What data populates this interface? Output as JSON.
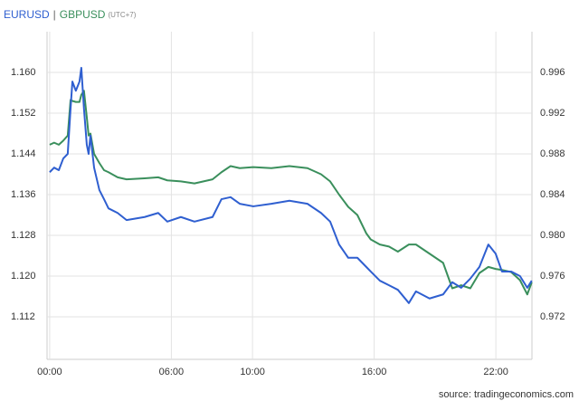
{
  "chart_data": {
    "type": "line",
    "legend_separator": "|",
    "subtitle": "(UTC+7)",
    "source": "source: tradingeconomics.com",
    "x": [
      0,
      0.22,
      0.45,
      0.67,
      0.89,
      1.03,
      1.12,
      1.29,
      1.47,
      1.56,
      1.69,
      1.83,
      1.92,
      2.01,
      2.19,
      2.45,
      2.68,
      2.9,
      3.35,
      3.79,
      4.68,
      5.35,
      5.8,
      6.47,
      7.14,
      8.03,
      8.47,
      8.92,
      9.37,
      10.04,
      10.93,
      11.82,
      12.71,
      13.38,
      13.83,
      14.27,
      14.72,
      15.17,
      15.61,
      15.83,
      16.28,
      16.73,
      17.17,
      17.71,
      18.06,
      18.73,
      19.4,
      19.85,
      20.29,
      20.74,
      21.19,
      21.63,
      21.99,
      22.3,
      22.75,
      23.19,
      23.55,
      23.77
    ],
    "series": [
      {
        "name": "EURUSD",
        "color": "#2f5fd0",
        "axis": "y",
        "values": [
          1.1404,
          1.1413,
          1.1408,
          1.1431,
          1.144,
          1.1529,
          1.1582,
          1.1564,
          1.1582,
          1.1609,
          1.1529,
          1.1458,
          1.144,
          1.1476,
          1.1413,
          1.1369,
          1.1351,
          1.1333,
          1.1324,
          1.131,
          1.1316,
          1.1324,
          1.1307,
          1.1316,
          1.1307,
          1.1316,
          1.1351,
          1.1355,
          1.1342,
          1.1337,
          1.1342,
          1.1348,
          1.1342,
          1.1324,
          1.1307,
          1.1262,
          1.1236,
          1.1236,
          1.1218,
          1.1209,
          1.1191,
          1.1182,
          1.1173,
          1.1147,
          1.117,
          1.1156,
          1.1164,
          1.1188,
          1.1177,
          1.1195,
          1.1218,
          1.1262,
          1.1244,
          1.1209,
          1.1209,
          1.12,
          1.1177,
          1.1191
        ]
      },
      {
        "name": "GBPUSD",
        "color": "#3a8f5c",
        "axis": "y2",
        "values": [
          0.9889,
          0.9891,
          0.9889,
          0.9893,
          0.9898,
          0.9933,
          0.9932,
          0.9931,
          0.9931,
          0.9938,
          0.9942,
          0.9916,
          0.9898,
          0.99,
          0.988,
          0.9871,
          0.9864,
          0.9862,
          0.9857,
          0.9855,
          0.9856,
          0.9857,
          0.9854,
          0.9853,
          0.9851,
          0.9855,
          0.9862,
          0.9868,
          0.9866,
          0.9867,
          0.9866,
          0.9868,
          0.9866,
          0.986,
          0.9853,
          0.984,
          0.9828,
          0.982,
          0.9802,
          0.9796,
          0.9791,
          0.9789,
          0.9784,
          0.9791,
          0.9791,
          0.9782,
          0.9773,
          0.9748,
          0.9751,
          0.9748,
          0.9763,
          0.9769,
          0.9767,
          0.9766,
          0.9764,
          0.9756,
          0.9742,
          0.9754
        ]
      }
    ],
    "xlim": [
      -0.13,
      23.78
    ],
    "xticks": [
      {
        "value": 0,
        "label": "00:00"
      },
      {
        "value": 6,
        "label": "06:00"
      },
      {
        "value": 10,
        "label": "10:00"
      },
      {
        "value": 16,
        "label": "16:00"
      },
      {
        "value": 22,
        "label": "22:00"
      }
    ],
    "ylim": [
      1.104,
      1.168
    ],
    "yticks": [
      1.112,
      {
        "value": 1.12,
        "label": "1.120"
      },
      1.128,
      1.136,
      1.144,
      1.152,
      {
        "value": 1.16,
        "label": "1.160"
      }
    ],
    "y2lim": [
      0.968,
      1.0
    ],
    "y2ticks": [
      0.972,
      0.976,
      {
        "value": 0.98,
        "label": "0.980"
      },
      0.984,
      0.988,
      0.992,
      0.996
    ],
    "grid": true
  }
}
